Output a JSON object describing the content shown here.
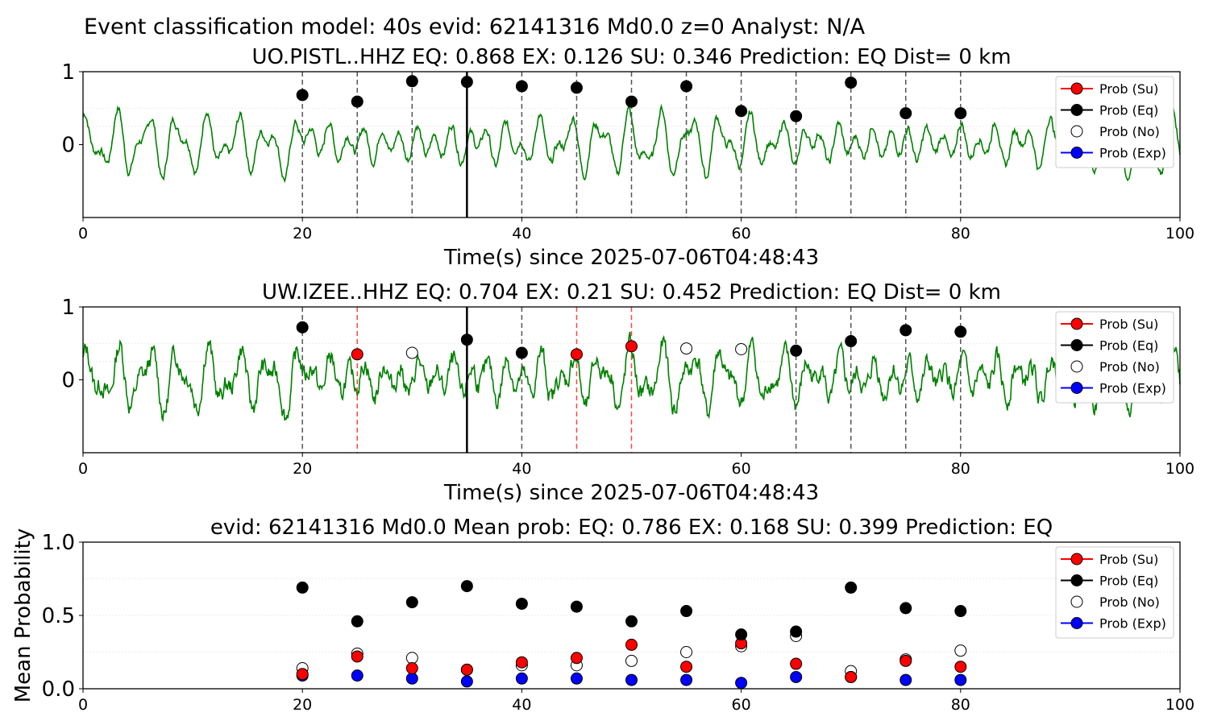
{
  "figure": {
    "title": "Event classification model: 40s evid: 62141316 Md0.0 z=0 Analyst: N/A"
  },
  "legend": {
    "entries": [
      {
        "label": "Prob (Su)",
        "color": "#ff0000",
        "fill": "#ff0000"
      },
      {
        "label": "Prob (Eq)",
        "color": "#000000",
        "fill": "#000000"
      },
      {
        "label": "Prob (No)",
        "color": null,
        "fill": "#ffffff"
      },
      {
        "label": "Prob (Exp)",
        "color": "#0000ff",
        "fill": "#0000ff"
      }
    ]
  },
  "chart_data": [
    {
      "type": "line",
      "title": "UO.PISTL..HHZ   EQ: 0.868  EX: 0.126  SU: 0.346   Prediction: EQ    Dist= 0 km",
      "xlabel": "Time(s) since 2025-07-06T04:48:43",
      "ylabel": "",
      "xlim": [
        0,
        100
      ],
      "ylim": [
        -1,
        1
      ],
      "xticks": [
        0,
        20,
        40,
        60,
        80,
        100
      ],
      "yticks": [
        0,
        1
      ],
      "waveform_color": "#008000",
      "marker_lines": [
        {
          "x": 20,
          "color": "#555555",
          "style": "dashed"
        },
        {
          "x": 25,
          "color": "#555555",
          "style": "dashed"
        },
        {
          "x": 30,
          "color": "#555555",
          "style": "dashed"
        },
        {
          "x": 35,
          "color": "#000000",
          "style": "solid"
        },
        {
          "x": 40,
          "color": "#555555",
          "style": "dashed"
        },
        {
          "x": 45,
          "color": "#555555",
          "style": "dashed"
        },
        {
          "x": 50,
          "color": "#555555",
          "style": "dashed"
        },
        {
          "x": 55,
          "color": "#555555",
          "style": "dashed"
        },
        {
          "x": 60,
          "color": "#555555",
          "style": "dashed"
        },
        {
          "x": 65,
          "color": "#555555",
          "style": "dashed"
        },
        {
          "x": 70,
          "color": "#555555",
          "style": "dashed"
        },
        {
          "x": 75,
          "color": "#555555",
          "style": "dashed"
        },
        {
          "x": 80,
          "color": "#555555",
          "style": "dashed"
        }
      ],
      "points": [
        {
          "x": 20,
          "y": 0.68,
          "class": "Eq"
        },
        {
          "x": 25,
          "y": 0.59,
          "class": "Eq"
        },
        {
          "x": 30,
          "y": 0.87,
          "class": "Eq"
        },
        {
          "x": 35,
          "y": 0.86,
          "class": "Eq"
        },
        {
          "x": 40,
          "y": 0.8,
          "class": "Eq"
        },
        {
          "x": 45,
          "y": 0.78,
          "class": "Eq"
        },
        {
          "x": 50,
          "y": 0.59,
          "class": "Eq"
        },
        {
          "x": 55,
          "y": 0.8,
          "class": "Eq"
        },
        {
          "x": 60,
          "y": 0.46,
          "class": "Eq"
        },
        {
          "x": 65,
          "y": 0.39,
          "class": "Eq"
        },
        {
          "x": 70,
          "y": 0.85,
          "class": "Eq"
        },
        {
          "x": 75,
          "y": 0.43,
          "class": "Eq"
        },
        {
          "x": 80,
          "y": 0.43,
          "class": "Eq"
        }
      ]
    },
    {
      "type": "line",
      "title": "UW.IZEE..HHZ   EQ: 0.704  EX: 0.21  SU: 0.452   Prediction: EQ    Dist= 0 km",
      "xlabel": "Time(s) since 2025-07-06T04:48:43",
      "ylabel": "",
      "xlim": [
        0,
        100
      ],
      "ylim": [
        -1,
        1
      ],
      "xticks": [
        0,
        20,
        40,
        60,
        80,
        100
      ],
      "yticks": [
        0,
        1
      ],
      "waveform_color": "#008000",
      "marker_lines": [
        {
          "x": 20,
          "color": "#555555",
          "style": "dashed"
        },
        {
          "x": 25,
          "color": "#ff4444",
          "style": "dashed"
        },
        {
          "x": 35,
          "color": "#000000",
          "style": "solid"
        },
        {
          "x": 40,
          "color": "#555555",
          "style": "dashed"
        },
        {
          "x": 45,
          "color": "#ff4444",
          "style": "dashed"
        },
        {
          "x": 50,
          "color": "#ff4444",
          "style": "dashed"
        },
        {
          "x": 65,
          "color": "#555555",
          "style": "dashed"
        },
        {
          "x": 70,
          "color": "#555555",
          "style": "dashed"
        },
        {
          "x": 75,
          "color": "#555555",
          "style": "dashed"
        },
        {
          "x": 80,
          "color": "#555555",
          "style": "dashed"
        }
      ],
      "points": [
        {
          "x": 20,
          "y": 0.72,
          "class": "Eq"
        },
        {
          "x": 25,
          "y": 0.35,
          "class": "Su"
        },
        {
          "x": 30,
          "y": 0.37,
          "class": "No"
        },
        {
          "x": 35,
          "y": 0.55,
          "class": "Eq"
        },
        {
          "x": 40,
          "y": 0.37,
          "class": "Eq"
        },
        {
          "x": 45,
          "y": 0.35,
          "class": "Su"
        },
        {
          "x": 50,
          "y": 0.46,
          "class": "Su"
        },
        {
          "x": 55,
          "y": 0.43,
          "class": "No"
        },
        {
          "x": 60,
          "y": 0.42,
          "class": "No"
        },
        {
          "x": 65,
          "y": 0.4,
          "class": "Eq"
        },
        {
          "x": 70,
          "y": 0.53,
          "class": "Eq"
        },
        {
          "x": 75,
          "y": 0.68,
          "class": "Eq"
        },
        {
          "x": 80,
          "y": 0.66,
          "class": "Eq"
        }
      ]
    },
    {
      "type": "scatter",
      "title": "evid: 62141316  Md0.0   Mean prob:   EQ: 0.786  EX: 0.168  SU: 0.399   Prediction: EQ",
      "xlabel": "",
      "ylabel": "Mean Probability",
      "xlim": [
        0,
        100
      ],
      "ylim": [
        0,
        1
      ],
      "xticks": [
        0,
        20,
        40,
        60,
        80,
        100
      ],
      "yticks": [
        0.0,
        0.5,
        1.0
      ],
      "x": [
        20,
        25,
        30,
        35,
        40,
        45,
        50,
        55,
        60,
        65,
        70,
        75,
        80
      ],
      "series": [
        {
          "name": "Prob (No)",
          "values": [
            0.14,
            0.24,
            0.21,
            0.13,
            0.16,
            0.16,
            0.19,
            0.25,
            0.29,
            0.36,
            0.12,
            0.2,
            0.26
          ]
        },
        {
          "name": "Prob (Exp)",
          "values": [
            0.09,
            0.09,
            0.07,
            0.05,
            0.07,
            0.07,
            0.06,
            0.06,
            0.04,
            0.08,
            0.08,
            0.06,
            0.06
          ]
        },
        {
          "name": "Prob (Su)",
          "values": [
            0.1,
            0.22,
            0.14,
            0.13,
            0.18,
            0.21,
            0.3,
            0.15,
            0.31,
            0.17,
            0.08,
            0.19,
            0.15
          ]
        },
        {
          "name": "Prob (Eq)",
          "values": [
            0.69,
            0.46,
            0.59,
            0.7,
            0.58,
            0.56,
            0.46,
            0.53,
            0.37,
            0.39,
            0.69,
            0.55,
            0.53
          ]
        }
      ]
    }
  ]
}
